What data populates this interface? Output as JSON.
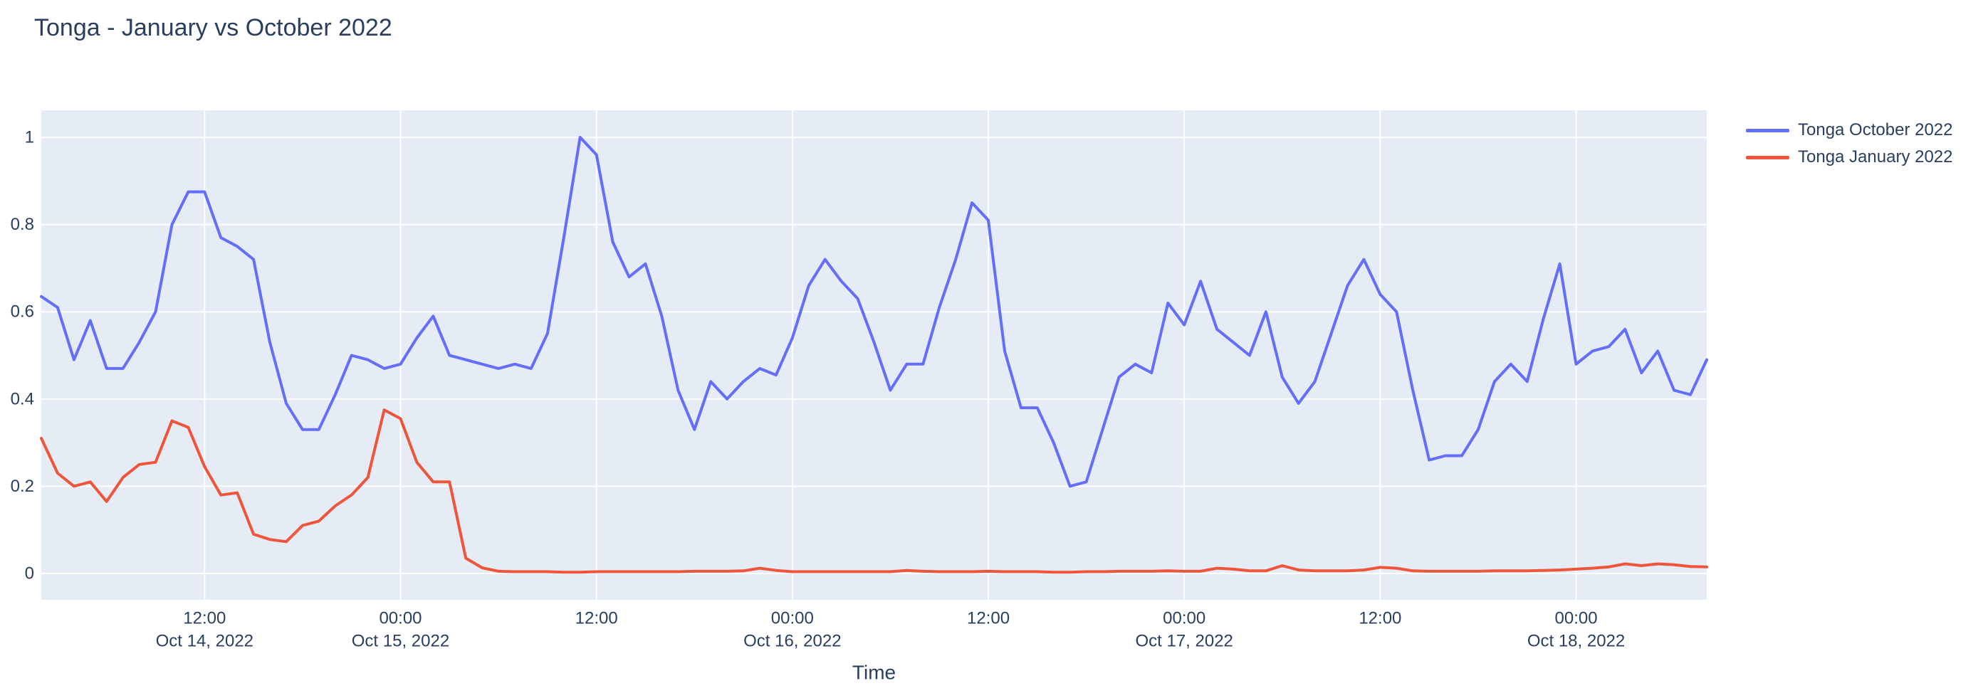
{
  "page": {
    "background_color": "#ffffff",
    "text_color": "#2a3f5f"
  },
  "chart_data": {
    "type": "line",
    "title": "Tonga - January vs October 2022",
    "xlabel": "Time",
    "ylabel": "",
    "plot_background": "#e5ecf6",
    "grid_color": "#ffffff",
    "grid": true,
    "legend_position": "outside-top-right",
    "x_axis": {
      "start": "2022-10-14 02:00",
      "end": "2022-10-18 08:00",
      "step_hours": 1,
      "num_points": 103,
      "ticks": [
        {
          "hour": 10,
          "time": "12:00",
          "date": "Oct 14, 2022"
        },
        {
          "hour": 22,
          "time": "00:00",
          "date": "Oct 15, 2022"
        },
        {
          "hour": 34,
          "time": "12:00",
          "date": null
        },
        {
          "hour": 46,
          "time": "00:00",
          "date": "Oct 16, 2022"
        },
        {
          "hour": 58,
          "time": "12:00",
          "date": null
        },
        {
          "hour": 70,
          "time": "00:00",
          "date": "Oct 17, 2022"
        },
        {
          "hour": 82,
          "time": "12:00",
          "date": null
        },
        {
          "hour": 94,
          "time": "00:00",
          "date": "Oct 18, 2022"
        }
      ]
    },
    "y_axis": {
      "range": [
        -0.06,
        1.06
      ],
      "ticks": [
        {
          "v": 0,
          "label": "0"
        },
        {
          "v": 0.2,
          "label": "0.2"
        },
        {
          "v": 0.4,
          "label": "0.4"
        },
        {
          "v": 0.6,
          "label": "0.6"
        },
        {
          "v": 0.8,
          "label": "0.8"
        },
        {
          "v": 1,
          "label": "1"
        }
      ]
    },
    "series": [
      {
        "name": "Tonga October 2022",
        "color": "#636efa",
        "values": [
          0.635,
          0.61,
          0.49,
          0.58,
          0.47,
          0.47,
          0.53,
          0.6,
          0.8,
          0.875,
          0.875,
          0.77,
          0.75,
          0.72,
          0.53,
          0.39,
          0.33,
          0.33,
          0.41,
          0.5,
          0.49,
          0.47,
          0.48,
          0.54,
          0.59,
          0.5,
          0.49,
          0.48,
          0.47,
          0.48,
          0.47,
          0.55,
          0.77,
          1.0,
          0.96,
          0.76,
          0.68,
          0.71,
          0.59,
          0.42,
          0.33,
          0.44,
          0.4,
          0.44,
          0.47,
          0.455,
          0.54,
          0.66,
          0.72,
          0.67,
          0.63,
          0.53,
          0.42,
          0.48,
          0.48,
          0.61,
          0.72,
          0.85,
          0.81,
          0.51,
          0.38,
          0.38,
          0.3,
          0.2,
          0.21,
          0.33,
          0.45,
          0.48,
          0.46,
          0.62,
          0.57,
          0.67,
          0.56,
          0.53,
          0.5,
          0.6,
          0.45,
          0.39,
          0.44,
          0.55,
          0.66,
          0.72,
          0.64,
          0.6,
          0.42,
          0.26,
          0.27,
          0.27,
          0.33,
          0.44,
          0.48,
          0.44,
          0.585,
          0.71,
          0.48,
          0.51,
          0.52,
          0.56,
          0.46,
          0.51,
          0.42,
          0.41,
          0.49
        ]
      },
      {
        "name": "Tonga January 2022",
        "color": "#ef553b",
        "values": [
          0.31,
          0.23,
          0.2,
          0.21,
          0.165,
          0.22,
          0.25,
          0.255,
          0.35,
          0.335,
          0.245,
          0.18,
          0.185,
          0.09,
          0.078,
          0.073,
          0.11,
          0.12,
          0.155,
          0.18,
          0.22,
          0.375,
          0.355,
          0.255,
          0.21,
          0.21,
          0.035,
          0.013,
          0.005,
          0.004,
          0.004,
          0.004,
          0.003,
          0.003,
          0.004,
          0.004,
          0.004,
          0.004,
          0.004,
          0.004,
          0.005,
          0.005,
          0.005,
          0.006,
          0.012,
          0.007,
          0.004,
          0.004,
          0.004,
          0.004,
          0.004,
          0.004,
          0.004,
          0.007,
          0.005,
          0.004,
          0.004,
          0.004,
          0.005,
          0.004,
          0.004,
          0.004,
          0.003,
          0.003,
          0.004,
          0.004,
          0.005,
          0.005,
          0.005,
          0.006,
          0.005,
          0.005,
          0.012,
          0.01,
          0.006,
          0.006,
          0.018,
          0.008,
          0.006,
          0.006,
          0.006,
          0.008,
          0.014,
          0.012,
          0.006,
          0.005,
          0.005,
          0.005,
          0.005,
          0.006,
          0.006,
          0.006,
          0.007,
          0.008,
          0.01,
          0.012,
          0.015,
          0.022,
          0.018,
          0.022,
          0.02,
          0.016,
          0.015
        ]
      }
    ]
  }
}
